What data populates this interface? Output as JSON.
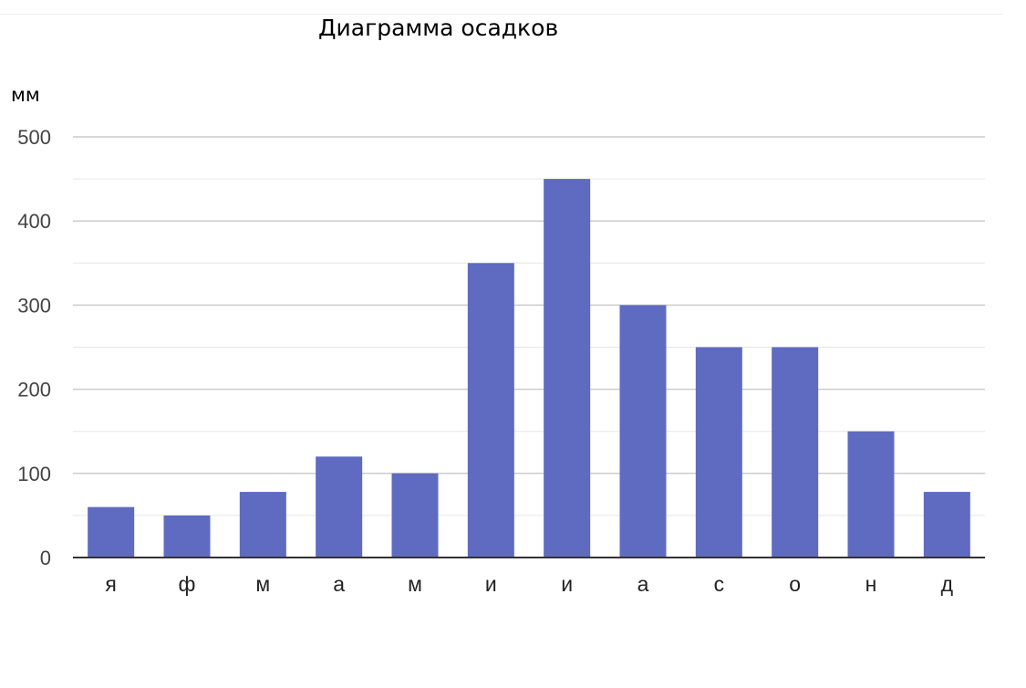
{
  "chart_data": {
    "type": "bar",
    "title": "Диаграмма осадков",
    "ylabel": "мм",
    "xlabel": "",
    "categories": [
      "я",
      "ф",
      "м",
      "а",
      "м",
      "и",
      "и",
      "а",
      "с",
      "о",
      "н",
      "д"
    ],
    "values": [
      60,
      50,
      78,
      120,
      100,
      350,
      450,
      300,
      250,
      250,
      150,
      78
    ],
    "ylim": [
      0,
      500
    ],
    "yticks": [
      "0",
      "100",
      "200",
      "300",
      "400",
      "500"
    ],
    "grid": true,
    "bar_color": "#5e6bc0",
    "grid_color": "#cccccc",
    "minor_grid_color": "#e6e6e6",
    "axis_color": "#333333"
  }
}
